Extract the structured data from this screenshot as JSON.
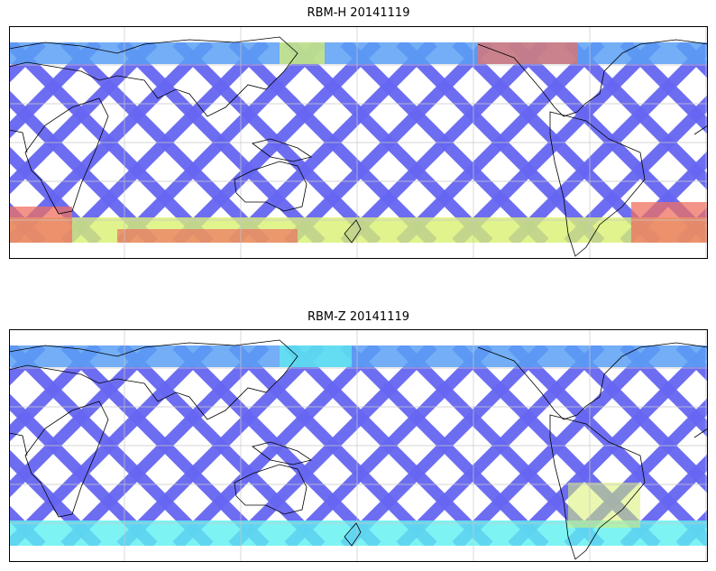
{
  "panels": [
    {
      "title": "RBM-H 20141119",
      "hot_south": true
    },
    {
      "title": "RBM-Z 20141119",
      "hot_south": false
    }
  ],
  "colors": {
    "low": "#6666f2",
    "mid_low": "#5aa0f5",
    "mid": "#5ef0f0",
    "mid_high": "#d8f070",
    "high": "#f07060",
    "coast": "#000000",
    "grid": "#c8c8c8"
  }
}
